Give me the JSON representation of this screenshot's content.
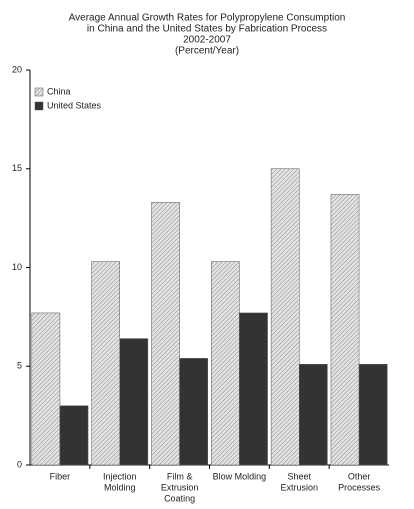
{
  "chart_data": {
    "type": "bar",
    "title": [
      "Average Annual Growth Rates for Polypropylene Consumption",
      "in China and the United States by Fabrication Process",
      "2002-2007",
      "(Percent/Year)"
    ],
    "categories": [
      [
        "Fiber"
      ],
      [
        "Injection",
        "Molding"
      ],
      [
        "Film &",
        "Extrusion",
        "Coating"
      ],
      [
        "Blow Molding"
      ],
      [
        "Sheet",
        "Extrusion"
      ],
      [
        "Other",
        "Processes"
      ]
    ],
    "series": [
      {
        "name": "China",
        "color": "#c8c8c8",
        "values": [
          7.7,
          10.3,
          13.3,
          10.3,
          15.0,
          13.7
        ]
      },
      {
        "name": "United States",
        "color": "#333333",
        "values": [
          3.0,
          6.4,
          5.4,
          7.7,
          5.1,
          5.1
        ]
      }
    ],
    "ylim": [
      0,
      20
    ],
    "yticks": [
      0,
      5,
      10,
      15,
      20
    ],
    "grid": false,
    "legend": "top-left"
  }
}
